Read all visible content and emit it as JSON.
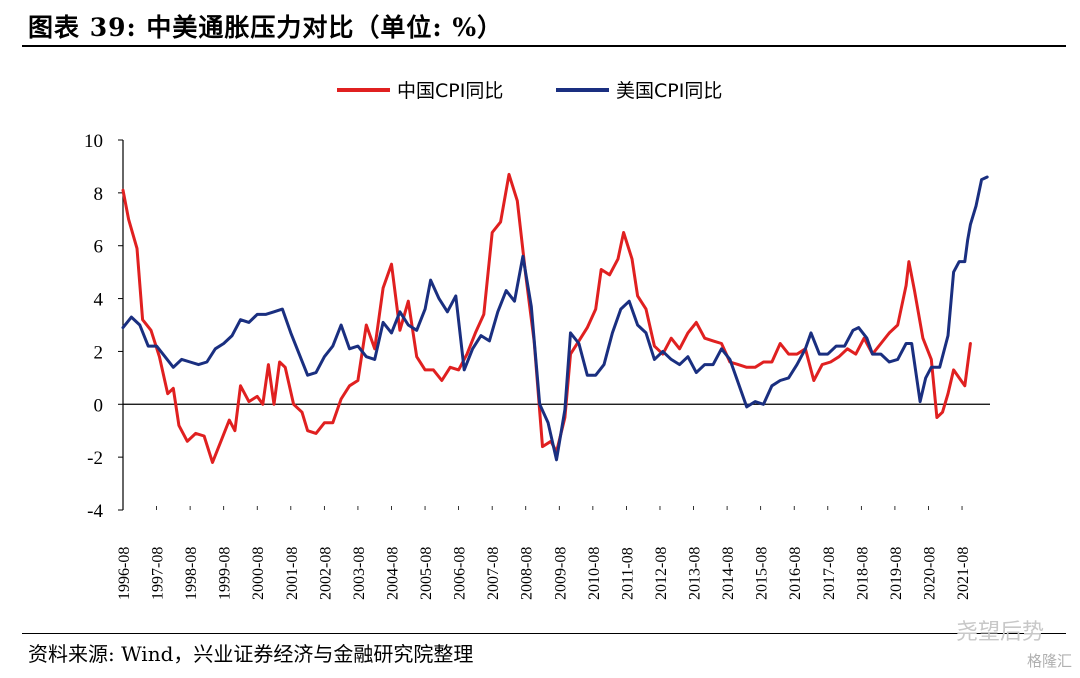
{
  "header": {
    "title": "图表 39:  中美通胀压力对比（单位:  %）"
  },
  "footer": {
    "source": "资料来源:  Wind，兴业证券经济与金融研究院整理"
  },
  "watermark": {
    "brand": "格隆汇",
    "account": "尧望后势"
  },
  "chart_data": {
    "type": "line",
    "title": "",
    "xlabel": "",
    "ylabel": "",
    "ylim": [
      -4,
      10
    ],
    "yticks": [
      10,
      8,
      6,
      4,
      2,
      0,
      -2,
      -4
    ],
    "grid": false,
    "legend_position": "top-center",
    "x_start": "1996-08",
    "x_end": "2021-11",
    "x_tick_labels": [
      "1996-08",
      "1997-08",
      "1998-08",
      "1999-08",
      "2000-08",
      "2001-08",
      "2002-08",
      "2003-08",
      "2004-08",
      "2005-08",
      "2006-08",
      "2007-08",
      "2008-08",
      "2009-08",
      "2010-08",
      "2011-08",
      "2012-08",
      "2013-08",
      "2014-08",
      "2015-08",
      "2016-08",
      "2017-08",
      "2018-08",
      "2019-08",
      "2020-08",
      "2021-08"
    ],
    "series": [
      {
        "name": "中国CPI同比",
        "color": "#e02020",
        "points": [
          [
            "1996-08",
            8.1
          ],
          [
            "1996-10",
            7.0
          ],
          [
            "1997-01",
            5.9
          ],
          [
            "1997-03",
            3.2
          ],
          [
            "1997-06",
            2.8
          ],
          [
            "1997-09",
            1.8
          ],
          [
            "1997-12",
            0.4
          ],
          [
            "1998-02",
            0.6
          ],
          [
            "1998-04",
            -0.8
          ],
          [
            "1998-07",
            -1.4
          ],
          [
            "1998-10",
            -1.1
          ],
          [
            "1999-01",
            -1.2
          ],
          [
            "1999-04",
            -2.2
          ],
          [
            "1999-07",
            -1.4
          ],
          [
            "1999-10",
            -0.6
          ],
          [
            "1999-12",
            -1.0
          ],
          [
            "2000-02",
            0.7
          ],
          [
            "2000-05",
            0.1
          ],
          [
            "2000-08",
            0.3
          ],
          [
            "2000-10",
            0.0
          ],
          [
            "2000-12",
            1.5
          ],
          [
            "2001-02",
            0.0
          ],
          [
            "2001-04",
            1.6
          ],
          [
            "2001-06",
            1.4
          ],
          [
            "2001-09",
            0.0
          ],
          [
            "2001-12",
            -0.3
          ],
          [
            "2002-02",
            -1.0
          ],
          [
            "2002-05",
            -1.1
          ],
          [
            "2002-08",
            -0.7
          ],
          [
            "2002-11",
            -0.7
          ],
          [
            "2003-02",
            0.2
          ],
          [
            "2003-05",
            0.7
          ],
          [
            "2003-08",
            0.9
          ],
          [
            "2003-11",
            3.0
          ],
          [
            "2004-02",
            2.1
          ],
          [
            "2004-05",
            4.4
          ],
          [
            "2004-08",
            5.3
          ],
          [
            "2004-11",
            2.8
          ],
          [
            "2005-02",
            3.9
          ],
          [
            "2005-05",
            1.8
          ],
          [
            "2005-08",
            1.3
          ],
          [
            "2005-11",
            1.3
          ],
          [
            "2006-02",
            0.9
          ],
          [
            "2006-05",
            1.4
          ],
          [
            "2006-08",
            1.3
          ],
          [
            "2006-11",
            1.9
          ],
          [
            "2007-02",
            2.7
          ],
          [
            "2007-05",
            3.4
          ],
          [
            "2007-08",
            6.5
          ],
          [
            "2007-11",
            6.9
          ],
          [
            "2008-02",
            8.7
          ],
          [
            "2008-05",
            7.7
          ],
          [
            "2008-08",
            4.9
          ],
          [
            "2008-11",
            2.4
          ],
          [
            "2009-02",
            -1.6
          ],
          [
            "2009-05",
            -1.4
          ],
          [
            "2009-07",
            -1.8
          ],
          [
            "2009-10",
            -0.5
          ],
          [
            "2009-12",
            1.9
          ],
          [
            "2010-03",
            2.4
          ],
          [
            "2010-06",
            2.9
          ],
          [
            "2010-09",
            3.6
          ],
          [
            "2010-11",
            5.1
          ],
          [
            "2011-02",
            4.9
          ],
          [
            "2011-05",
            5.5
          ],
          [
            "2011-07",
            6.5
          ],
          [
            "2011-10",
            5.5
          ],
          [
            "2011-12",
            4.1
          ],
          [
            "2012-03",
            3.6
          ],
          [
            "2012-06",
            2.2
          ],
          [
            "2012-09",
            1.9
          ],
          [
            "2012-12",
            2.5
          ],
          [
            "2013-03",
            2.1
          ],
          [
            "2013-06",
            2.7
          ],
          [
            "2013-09",
            3.1
          ],
          [
            "2013-12",
            2.5
          ],
          [
            "2014-03",
            2.4
          ],
          [
            "2014-06",
            2.3
          ],
          [
            "2014-09",
            1.6
          ],
          [
            "2014-12",
            1.5
          ],
          [
            "2015-03",
            1.4
          ],
          [
            "2015-06",
            1.4
          ],
          [
            "2015-09",
            1.6
          ],
          [
            "2015-12",
            1.6
          ],
          [
            "2016-03",
            2.3
          ],
          [
            "2016-06",
            1.9
          ],
          [
            "2016-09",
            1.9
          ],
          [
            "2016-12",
            2.1
          ],
          [
            "2017-03",
            0.9
          ],
          [
            "2017-06",
            1.5
          ],
          [
            "2017-09",
            1.6
          ],
          [
            "2017-12",
            1.8
          ],
          [
            "2018-03",
            2.1
          ],
          [
            "2018-06",
            1.9
          ],
          [
            "2018-09",
            2.5
          ],
          [
            "2018-12",
            1.9
          ],
          [
            "2019-03",
            2.3
          ],
          [
            "2019-06",
            2.7
          ],
          [
            "2019-09",
            3.0
          ],
          [
            "2019-12",
            4.5
          ],
          [
            "2020-01",
            5.4
          ],
          [
            "2020-03",
            4.3
          ],
          [
            "2020-06",
            2.5
          ],
          [
            "2020-09",
            1.7
          ],
          [
            "2020-11",
            -0.5
          ],
          [
            "2021-01",
            -0.3
          ],
          [
            "2021-03",
            0.4
          ],
          [
            "2021-05",
            1.3
          ],
          [
            "2021-07",
            1.0
          ],
          [
            "2021-09",
            0.7
          ],
          [
            "2021-10",
            1.5
          ],
          [
            "2021-11",
            2.3
          ]
        ]
      },
      {
        "name": "美国CPI同比",
        "color": "#1a2f80",
        "points": [
          [
            "1996-08",
            2.9
          ],
          [
            "1996-11",
            3.3
          ],
          [
            "1997-02",
            3.0
          ],
          [
            "1997-05",
            2.2
          ],
          [
            "1997-08",
            2.2
          ],
          [
            "1997-11",
            1.8
          ],
          [
            "1998-02",
            1.4
          ],
          [
            "1998-05",
            1.7
          ],
          [
            "1998-08",
            1.6
          ],
          [
            "1998-11",
            1.5
          ],
          [
            "1999-02",
            1.6
          ],
          [
            "1999-05",
            2.1
          ],
          [
            "1999-08",
            2.3
          ],
          [
            "1999-11",
            2.6
          ],
          [
            "2000-02",
            3.2
          ],
          [
            "2000-05",
            3.1
          ],
          [
            "2000-08",
            3.4
          ],
          [
            "2000-11",
            3.4
          ],
          [
            "2001-02",
            3.5
          ],
          [
            "2001-05",
            3.6
          ],
          [
            "2001-08",
            2.7
          ],
          [
            "2001-11",
            1.9
          ],
          [
            "2002-02",
            1.1
          ],
          [
            "2002-05",
            1.2
          ],
          [
            "2002-08",
            1.8
          ],
          [
            "2002-11",
            2.2
          ],
          [
            "2003-02",
            3.0
          ],
          [
            "2003-05",
            2.1
          ],
          [
            "2003-08",
            2.2
          ],
          [
            "2003-11",
            1.8
          ],
          [
            "2004-02",
            1.7
          ],
          [
            "2004-05",
            3.1
          ],
          [
            "2004-08",
            2.7
          ],
          [
            "2004-11",
            3.5
          ],
          [
            "2005-02",
            3.0
          ],
          [
            "2005-05",
            2.8
          ],
          [
            "2005-08",
            3.6
          ],
          [
            "2005-10",
            4.7
          ],
          [
            "2006-01",
            4.0
          ],
          [
            "2006-04",
            3.5
          ],
          [
            "2006-07",
            4.1
          ],
          [
            "2006-10",
            1.3
          ],
          [
            "2007-01",
            2.1
          ],
          [
            "2007-04",
            2.6
          ],
          [
            "2007-07",
            2.4
          ],
          [
            "2007-10",
            3.5
          ],
          [
            "2008-01",
            4.3
          ],
          [
            "2008-04",
            3.9
          ],
          [
            "2008-07",
            5.6
          ],
          [
            "2008-10",
            3.7
          ],
          [
            "2009-01",
            0.0
          ],
          [
            "2009-04",
            -0.7
          ],
          [
            "2009-07",
            -2.1
          ],
          [
            "2009-10",
            -0.2
          ],
          [
            "2009-12",
            2.7
          ],
          [
            "2010-03",
            2.3
          ],
          [
            "2010-06",
            1.1
          ],
          [
            "2010-09",
            1.1
          ],
          [
            "2010-12",
            1.5
          ],
          [
            "2011-03",
            2.7
          ],
          [
            "2011-06",
            3.6
          ],
          [
            "2011-09",
            3.9
          ],
          [
            "2011-12",
            3.0
          ],
          [
            "2012-03",
            2.7
          ],
          [
            "2012-06",
            1.7
          ],
          [
            "2012-09",
            2.0
          ],
          [
            "2012-12",
            1.7
          ],
          [
            "2013-03",
            1.5
          ],
          [
            "2013-06",
            1.8
          ],
          [
            "2013-09",
            1.2
          ],
          [
            "2013-12",
            1.5
          ],
          [
            "2014-03",
            1.5
          ],
          [
            "2014-06",
            2.1
          ],
          [
            "2014-09",
            1.7
          ],
          [
            "2014-12",
            0.8
          ],
          [
            "2015-03",
            -0.1
          ],
          [
            "2015-06",
            0.1
          ],
          [
            "2015-09",
            0.0
          ],
          [
            "2015-12",
            0.7
          ],
          [
            "2016-03",
            0.9
          ],
          [
            "2016-06",
            1.0
          ],
          [
            "2016-09",
            1.5
          ],
          [
            "2016-12",
            2.1
          ],
          [
            "2017-02",
            2.7
          ],
          [
            "2017-05",
            1.9
          ],
          [
            "2017-08",
            1.9
          ],
          [
            "2017-11",
            2.2
          ],
          [
            "2018-02",
            2.2
          ],
          [
            "2018-05",
            2.8
          ],
          [
            "2018-07",
            2.9
          ],
          [
            "2018-10",
            2.5
          ],
          [
            "2018-12",
            1.9
          ],
          [
            "2019-03",
            1.9
          ],
          [
            "2019-06",
            1.6
          ],
          [
            "2019-09",
            1.7
          ],
          [
            "2019-12",
            2.3
          ],
          [
            "2020-02",
            2.3
          ],
          [
            "2020-05",
            0.1
          ],
          [
            "2020-07",
            1.0
          ],
          [
            "2020-09",
            1.4
          ],
          [
            "2020-12",
            1.4
          ],
          [
            "2021-03",
            2.6
          ],
          [
            "2021-05",
            5.0
          ],
          [
            "2021-07",
            5.4
          ],
          [
            "2021-09",
            5.4
          ],
          [
            "2021-10",
            6.2
          ],
          [
            "2021-11",
            6.8
          ],
          [
            "2022-01",
            7.5
          ],
          [
            "2022-03",
            8.5
          ],
          [
            "2022-05",
            8.6
          ]
        ]
      }
    ]
  }
}
